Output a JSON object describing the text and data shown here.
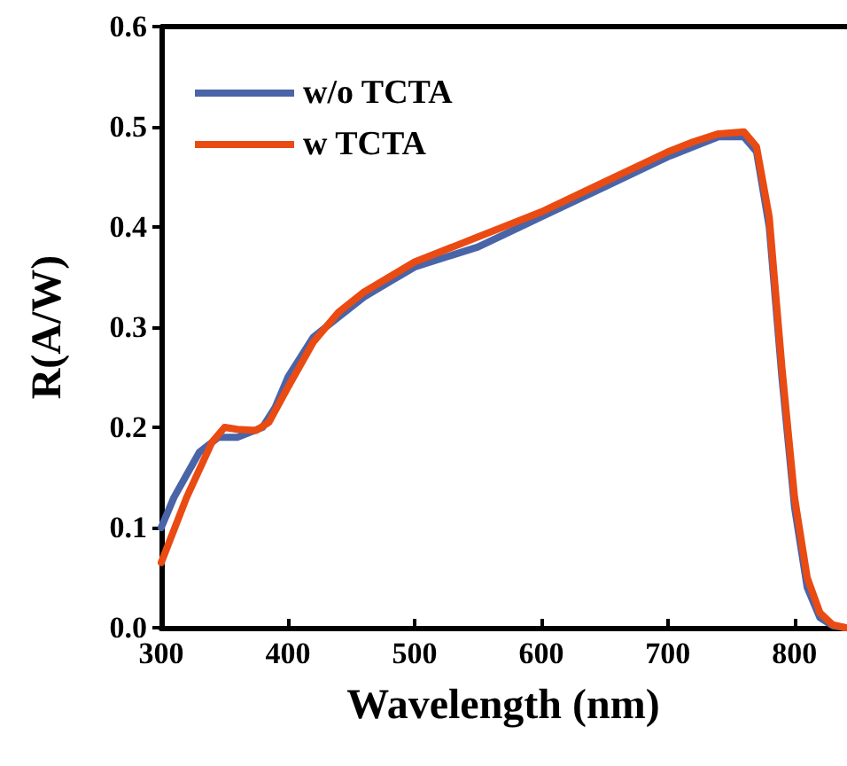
{
  "chart_data": {
    "type": "line",
    "xlabel": "Wavelength (nm)",
    "ylabel": "R(A/W)",
    "xlim": [
      300,
      840
    ],
    "xticks": [
      300,
      400,
      500,
      600,
      700,
      800
    ],
    "ylim": [
      0,
      0.6
    ],
    "yticks": [
      {
        "value": 0,
        "label": "0.0"
      },
      0.1,
      0.2,
      0.3,
      0.4,
      0.5,
      0.6
    ],
    "legend": "top left",
    "grid": false,
    "marker": "none",
    "line_style": "solid",
    "series": [
      {
        "name": "w/o TCTA",
        "color": "#4a64a8",
        "x": [
          300,
          310,
          330,
          345,
          360,
          380,
          390,
          400,
          420,
          440,
          460,
          480,
          500,
          550,
          600,
          650,
          700,
          720,
          740,
          760,
          770,
          780,
          790,
          800,
          810,
          820,
          830,
          840
        ],
        "values": [
          0.1,
          0.13,
          0.175,
          0.19,
          0.19,
          0.2,
          0.22,
          0.25,
          0.29,
          0.31,
          0.33,
          0.345,
          0.36,
          0.38,
          0.41,
          0.44,
          0.47,
          0.48,
          0.49,
          0.49,
          0.475,
          0.4,
          0.25,
          0.12,
          0.04,
          0.01,
          0.002,
          0
        ]
      },
      {
        "name": "w TCTA",
        "color": "#ea4b12",
        "x": [
          300,
          320,
          340,
          350,
          360,
          375,
          385,
          400,
          420,
          440,
          460,
          480,
          500,
          550,
          600,
          650,
          700,
          720,
          740,
          760,
          770,
          780,
          790,
          800,
          810,
          820,
          830,
          840
        ],
        "values": [
          0.065,
          0.13,
          0.185,
          0.2,
          0.198,
          0.197,
          0.205,
          0.24,
          0.285,
          0.315,
          0.335,
          0.35,
          0.365,
          0.39,
          0.415,
          0.445,
          0.475,
          0.485,
          0.493,
          0.495,
          0.48,
          0.41,
          0.26,
          0.13,
          0.05,
          0.015,
          0.003,
          0
        ]
      }
    ]
  }
}
